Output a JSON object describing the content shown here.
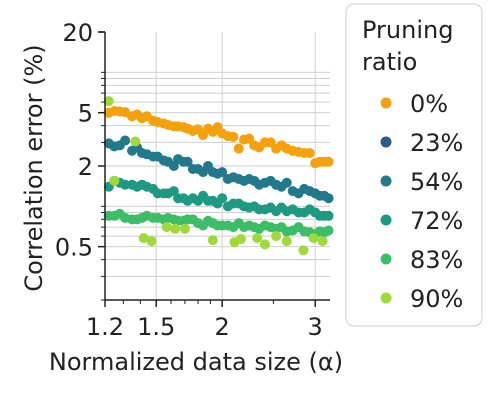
{
  "chart_data": {
    "type": "scatter",
    "xlabel": "Normalized data size (α)",
    "ylabel": "Correlation error (%)",
    "x_scale": "log",
    "y_scale": "log",
    "xlim": [
      1.2,
      3.2
    ],
    "ylim": [
      0.2,
      20
    ],
    "x_ticks": [
      1.2,
      1.5,
      2,
      3
    ],
    "x_tick_labels": [
      "1.2",
      "1.5",
      "2",
      "3"
    ],
    "y_ticks": [
      0.5,
      2,
      5,
      20
    ],
    "y_tick_labels": [
      "0.5",
      "2",
      "5",
      "20"
    ],
    "grid": true,
    "legend": {
      "title": "Pruning\nratio",
      "placement": "outside-right"
    },
    "x": [
      1.22,
      1.25,
      1.28,
      1.31,
      1.35,
      1.38,
      1.41,
      1.44,
      1.48,
      1.51,
      1.55,
      1.58,
      1.62,
      1.65,
      1.69,
      1.72,
      1.76,
      1.8,
      1.84,
      1.88,
      1.92,
      1.96,
      2.0,
      2.05,
      2.1,
      2.15,
      2.2,
      2.25,
      2.3,
      2.35,
      2.41,
      2.47,
      2.53,
      2.59,
      2.65,
      2.72,
      2.79,
      2.86,
      2.93,
      3.0,
      3.06,
      3.12,
      3.18
    ],
    "series": [
      {
        "name": "0%",
        "color": "#f5a10e",
        "values": [
          5.0,
          5.15,
          5.1,
          5.05,
          4.7,
          4.85,
          4.55,
          4.7,
          4.35,
          4.25,
          4.15,
          4.05,
          3.95,
          3.95,
          3.9,
          3.8,
          3.65,
          3.75,
          3.4,
          3.8,
          3.6,
          3.9,
          3.5,
          3.35,
          3.3,
          2.7,
          3.15,
          3.2,
          2.85,
          2.75,
          3.0,
          3.0,
          2.7,
          2.85,
          2.7,
          2.6,
          2.55,
          2.5,
          2.5,
          2.1,
          2.15,
          2.15,
          2.15
        ]
      },
      {
        "name": "23%",
        "color": "#2e5a87",
        "values": []
      },
      {
        "name": "54%",
        "color": "#23798c",
        "values": [
          2.95,
          2.8,
          2.85,
          3.1,
          2.6,
          2.75,
          2.5,
          2.45,
          2.35,
          2.35,
          2.2,
          2.15,
          2.0,
          2.25,
          2.15,
          2.15,
          1.9,
          1.9,
          1.8,
          2.0,
          1.8,
          1.75,
          1.8,
          1.6,
          1.65,
          1.6,
          1.55,
          1.6,
          1.55,
          1.45,
          1.5,
          1.55,
          1.45,
          1.4,
          1.5,
          1.3,
          1.25,
          1.35,
          1.3,
          1.25,
          1.2,
          1.2,
          1.15
        ]
      },
      {
        "name": "72%",
        "color": "#1e9a83",
        "values": [
          1.4,
          1.55,
          1.5,
          1.45,
          1.45,
          1.4,
          1.45,
          1.4,
          1.35,
          1.25,
          1.25,
          1.25,
          1.3,
          1.15,
          1.15,
          1.1,
          1.15,
          1.1,
          1.2,
          1.1,
          1.1,
          1.05,
          1.15,
          1.0,
          1.05,
          1.05,
          1.0,
          0.98,
          1.0,
          0.95,
          0.95,
          0.98,
          0.92,
          0.98,
          0.92,
          0.95,
          0.9,
          0.9,
          0.95,
          0.9,
          0.85,
          0.85,
          0.85
        ]
      },
      {
        "name": "83%",
        "color": "#3cbd67",
        "values": [
          0.85,
          0.85,
          0.88,
          0.82,
          0.8,
          0.8,
          0.82,
          0.85,
          0.82,
          0.82,
          0.8,
          0.82,
          0.8,
          0.78,
          0.78,
          0.8,
          0.8,
          0.75,
          0.72,
          0.78,
          0.75,
          0.72,
          0.72,
          0.72,
          0.7,
          0.75,
          0.7,
          0.72,
          0.7,
          0.68,
          0.72,
          0.7,
          0.68,
          0.7,
          0.65,
          0.66,
          0.7,
          0.65,
          0.64,
          0.62,
          0.65,
          0.64,
          0.66
        ]
      },
      {
        "name": "90%",
        "color": "#9fd93a",
        "values": []
      }
    ],
    "extra_points": [
      {
        "series": "90%",
        "x": 1.22,
        "y": 6.1
      },
      {
        "series": "90%",
        "x": 1.25,
        "y": 1.55
      },
      {
        "series": "90%",
        "x": 1.37,
        "y": 3.05
      },
      {
        "series": "90%",
        "x": 1.42,
        "y": 0.58
      },
      {
        "series": "90%",
        "x": 1.47,
        "y": 0.55
      },
      {
        "series": "90%",
        "x": 1.57,
        "y": 0.7
      },
      {
        "series": "90%",
        "x": 1.63,
        "y": 0.68
      },
      {
        "series": "90%",
        "x": 1.7,
        "y": 0.68
      },
      {
        "series": "90%",
        "x": 1.92,
        "y": 0.56
      },
      {
        "series": "90%",
        "x": 2.11,
        "y": 0.54
      },
      {
        "series": "90%",
        "x": 2.17,
        "y": 0.57
      },
      {
        "series": "90%",
        "x": 2.33,
        "y": 0.58
      },
      {
        "series": "90%",
        "x": 2.41,
        "y": 0.52
      },
      {
        "series": "90%",
        "x": 2.53,
        "y": 0.6
      },
      {
        "series": "90%",
        "x": 2.65,
        "y": 0.55
      },
      {
        "series": "90%",
        "x": 2.85,
        "y": 0.47
      },
      {
        "series": "90%",
        "x": 2.98,
        "y": 0.58
      },
      {
        "series": "90%",
        "x": 3.1,
        "y": 0.55
      }
    ]
  }
}
